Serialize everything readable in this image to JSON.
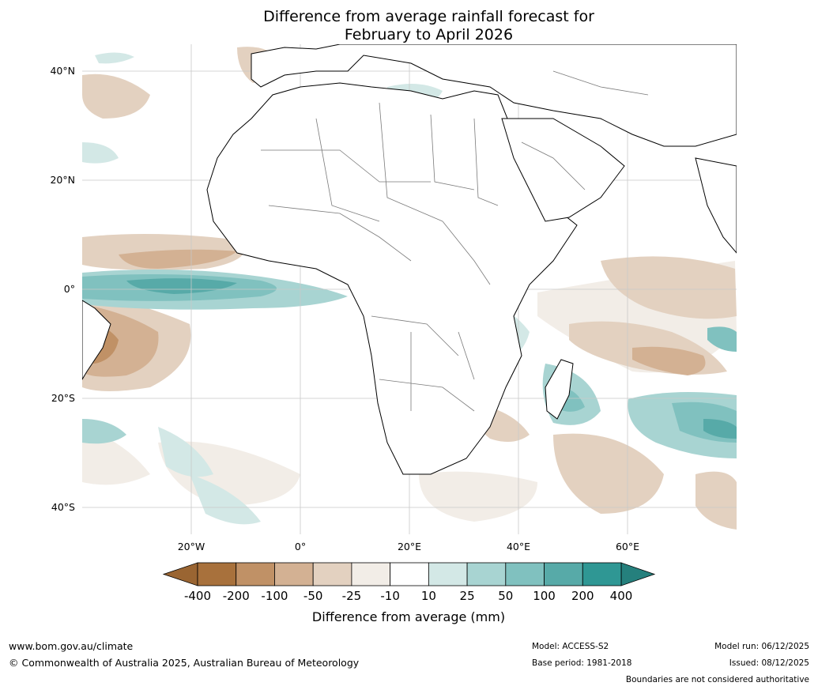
{
  "title": {
    "line1": "Difference from average rainfall forecast for",
    "line2": "February to April 2026"
  },
  "map": {
    "lat_labels": [
      "40°N",
      "20°N",
      "0°",
      "20°S",
      "40°S"
    ],
    "lon_labels": [
      "20°W",
      "0°",
      "20°E",
      "40°E",
      "60°E"
    ]
  },
  "legend": {
    "ticks": [
      "-400",
      "-200",
      "-100",
      "-50",
      "-25",
      "-10",
      "10",
      "25",
      "50",
      "100",
      "200",
      "400"
    ],
    "colors": [
      "#a8713c",
      "#c09166",
      "#d3b193",
      "#e3d1c0",
      "#f2ede7",
      "#ffffff",
      "#d3e8e6",
      "#a8d4d2",
      "#80c1bf",
      "#57aaa8",
      "#2f9794"
    ],
    "low_extend_color": "#9a6532",
    "high_extend_color": "#25807d",
    "label": "Difference from average (mm)"
  },
  "footer": {
    "website": "www.bom.gov.au/climate",
    "copyright": "© Commonwealth of Australia 2025, Australian Bureau of Meteorology",
    "model": "Model: ACCESS-S2",
    "base_period": "Base period: 1981-2018",
    "model_run": "Model run: 06/12/2025",
    "issued": "Issued: 08/12/2025",
    "disclaimer": "Boundaries are not considered authoritative"
  }
}
